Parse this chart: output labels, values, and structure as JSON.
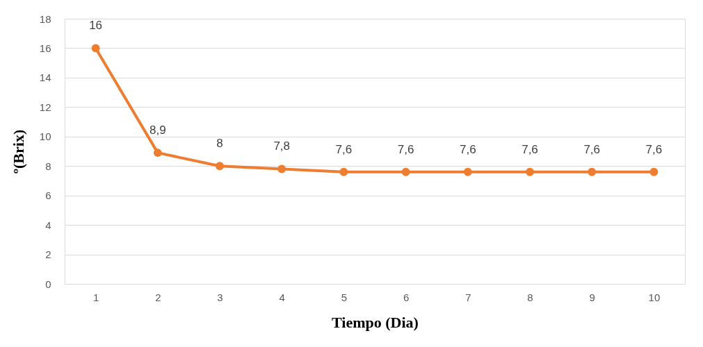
{
  "chart_data": {
    "type": "line",
    "xlabel": "Tiempo (Dia)",
    "ylabel": "º(Brix)",
    "categories": [
      "1",
      "2",
      "3",
      "4",
      "5",
      "6",
      "7",
      "8",
      "9",
      "10"
    ],
    "values": [
      16,
      8.9,
      8,
      7.8,
      7.6,
      7.6,
      7.6,
      7.6,
      7.6,
      7.6
    ],
    "value_labels": [
      "16",
      "8,9",
      "8",
      "7,8",
      "7,6",
      "7,6",
      "7,6",
      "7,6",
      "7,6",
      "7,6"
    ],
    "color": "#ed7d31",
    "ylim": [
      0,
      18
    ],
    "yticks": [
      0,
      2,
      4,
      6,
      8,
      10,
      12,
      14,
      16,
      18
    ],
    "grid": "y",
    "marker": "circle"
  }
}
